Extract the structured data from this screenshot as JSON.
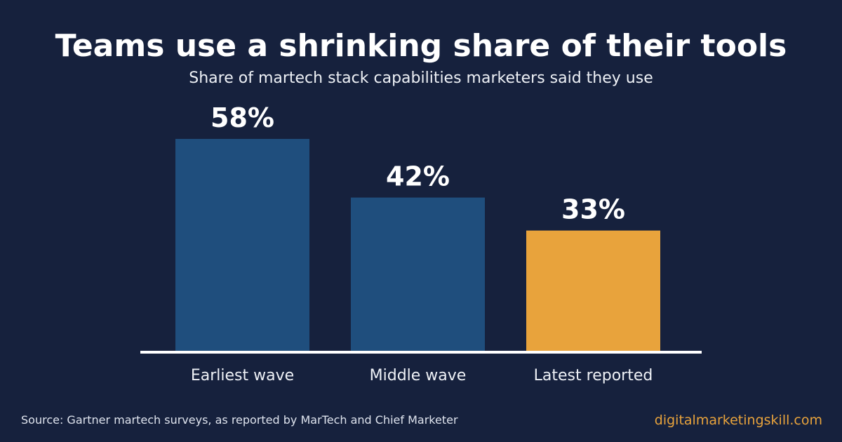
{
  "header": {
    "title": "Teams use a shrinking share of their tools",
    "subtitle": "Share of martech stack capabilities marketers said they use"
  },
  "chart_data": {
    "type": "bar",
    "title": "Teams use a shrinking share of their tools",
    "subtitle": "Share of martech stack capabilities marketers said they use",
    "categories": [
      "Earliest wave",
      "Middle wave",
      "Latest reported"
    ],
    "values": [
      58,
      42,
      33
    ],
    "value_labels": [
      "58%",
      "42%",
      "33%"
    ],
    "unit": "%",
    "ylim": [
      0,
      60
    ],
    "grid": false,
    "legend": "none",
    "colors": [
      "#1f4e7d",
      "#1f4e7d",
      "#e8a33c"
    ]
  },
  "footer": {
    "source": "Source: Gartner martech surveys, as reported by MarTech and Chief Marketer",
    "brand": "digitalmarketingskill.com"
  },
  "colors": {
    "background": "#16213d",
    "bar_primary": "#1f4e7d",
    "bar_highlight": "#e8a33c",
    "axis": "#ffffff",
    "brand_text": "#e8a33c"
  }
}
